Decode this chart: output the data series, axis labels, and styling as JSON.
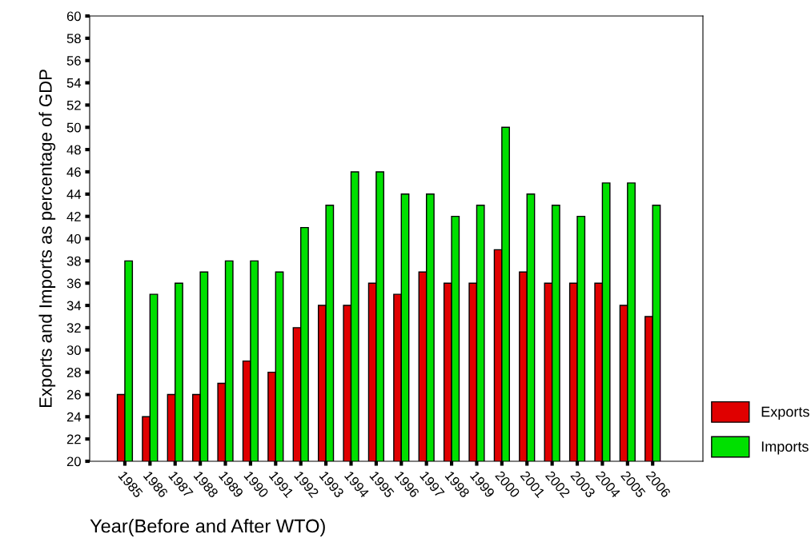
{
  "chart_data": {
    "type": "bar",
    "xlabel": "Year(Before and After WTO)",
    "ylabel": "Exports and Imports as percentage of GDP",
    "categories": [
      "1985",
      "1986",
      "1987",
      "1988",
      "1989",
      "1990",
      "1991",
      "1992",
      "1993",
      "1994",
      "1995",
      "1996",
      "1997",
      "1998",
      "1999",
      "2000",
      "2001",
      "2002",
      "2003",
      "2004",
      "2005",
      "2006"
    ],
    "series": [
      {
        "name": "Exports",
        "color": "#e00000",
        "values": [
          26,
          24,
          26,
          26,
          27,
          29,
          28,
          32,
          34,
          34,
          36,
          35,
          37,
          36,
          36,
          39,
          37,
          36,
          36,
          36,
          34,
          33
        ]
      },
      {
        "name": "Imports",
        "color": "#00e000",
        "values": [
          38,
          35,
          36,
          37,
          38,
          38,
          37,
          41,
          43,
          46,
          46,
          44,
          44,
          42,
          43,
          50,
          44,
          43,
          42,
          45,
          45,
          43
        ]
      }
    ],
    "ylim": [
      20,
      60
    ],
    "yticks": [
      20,
      22,
      24,
      26,
      28,
      30,
      32,
      34,
      36,
      38,
      40,
      42,
      44,
      46,
      48,
      50,
      52,
      54,
      56,
      58,
      60
    ],
    "grid": false,
    "legend": "bottom right"
  }
}
